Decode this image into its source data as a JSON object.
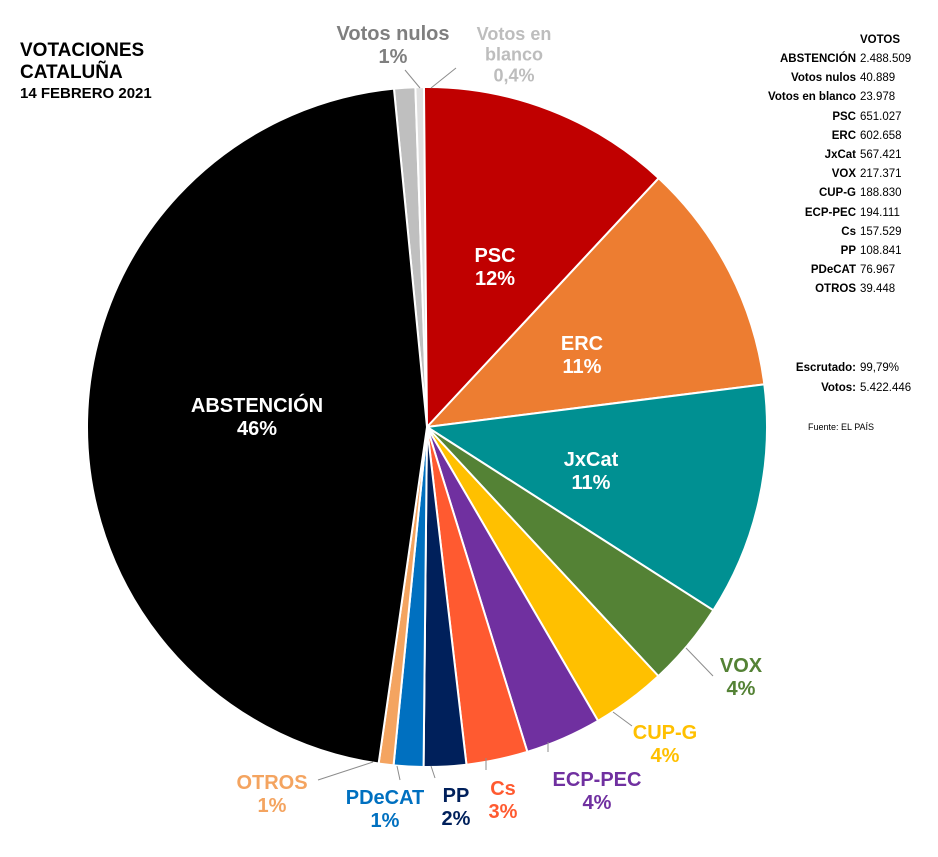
{
  "title": {
    "line1": "VOTACIONES",
    "line2": "CATALUÑA",
    "date": "14 FEBRERO 2021"
  },
  "chart_data": {
    "type": "pie",
    "slices": [
      {
        "name": "Votos nulos",
        "pct_label": "1%",
        "value": 1.0,
        "color": "#bfbfbf",
        "label_color": "#7f7f7f"
      },
      {
        "name": "Votos en blanco",
        "label_line1": "Votos en",
        "label_line2": "blanco",
        "pct_label": "0,4%",
        "value": 0.4,
        "color": "#e0e0e0",
        "label_color": "#bdbdbd"
      },
      {
        "name": "PSC",
        "pct_label": "12%",
        "value": 12,
        "color": "#c00000",
        "label_color": "#ffffff"
      },
      {
        "name": "ERC",
        "pct_label": "11%",
        "value": 11,
        "color": "#ed7d31",
        "label_color": "#ffffff"
      },
      {
        "name": "JxCat",
        "pct_label": "11%",
        "value": 11,
        "color": "#009092",
        "label_color": "#ffffff"
      },
      {
        "name": "VOX",
        "pct_label": "4%",
        "value": 4,
        "color": "#548235",
        "label_color": "#548235"
      },
      {
        "name": "CUP-G",
        "pct_label": "4%",
        "value": 3.5,
        "color": "#ffc000",
        "label_color": "#ffc000"
      },
      {
        "name": "ECP-PEC",
        "pct_label": "4%",
        "value": 3.6,
        "color": "#7030a0",
        "label_color": "#7030a0"
      },
      {
        "name": "Cs",
        "pct_label": "3%",
        "value": 2.9,
        "color": "#ff5a30",
        "label_color": "#ff5a30"
      },
      {
        "name": "PP",
        "pct_label": "2%",
        "value": 2.0,
        "color": "#00205b",
        "label_color": "#00205b"
      },
      {
        "name": "PDeCAT",
        "pct_label": "1%",
        "value": 1.4,
        "color": "#0070c0",
        "label_color": "#0070c0"
      },
      {
        "name": "OTROS",
        "pct_label": "1%",
        "value": 0.7,
        "color": "#f4a460",
        "label_color": "#f4a460"
      },
      {
        "name": "ABSTENCIÓN",
        "pct_label": "46%",
        "value": 45.9,
        "color": "#000000",
        "label_color": "#ffffff"
      }
    ]
  },
  "votes_table": {
    "header": "VOTOS",
    "rows": [
      {
        "k": "ABSTENCIÓN",
        "v": "2.488.509"
      },
      {
        "k": "Votos nulos",
        "v": "40.889"
      },
      {
        "k": "Votos en blanco",
        "v": "23.978"
      },
      {
        "k": "PSC",
        "v": "651.027"
      },
      {
        "k": "ERC",
        "v": "602.658"
      },
      {
        "k": "JxCat",
        "v": "567.421"
      },
      {
        "k": "VOX",
        "v": "217.371"
      },
      {
        "k": "CUP-G",
        "v": "188.830"
      },
      {
        "k": "ECP-PEC",
        "v": "194.111"
      },
      {
        "k": "Cs",
        "v": "157.529"
      },
      {
        "k": "PP",
        "v": "108.841"
      },
      {
        "k": "PDeCAT",
        "v": "76.967"
      },
      {
        "k": "OTROS",
        "v": "39.448"
      }
    ],
    "summary": [
      {
        "k": "Escrutado:",
        "v": "99,79%"
      },
      {
        "k": "Votos:",
        "v": "5.422.446"
      }
    ]
  },
  "source": "Fuente: EL PAÍS"
}
